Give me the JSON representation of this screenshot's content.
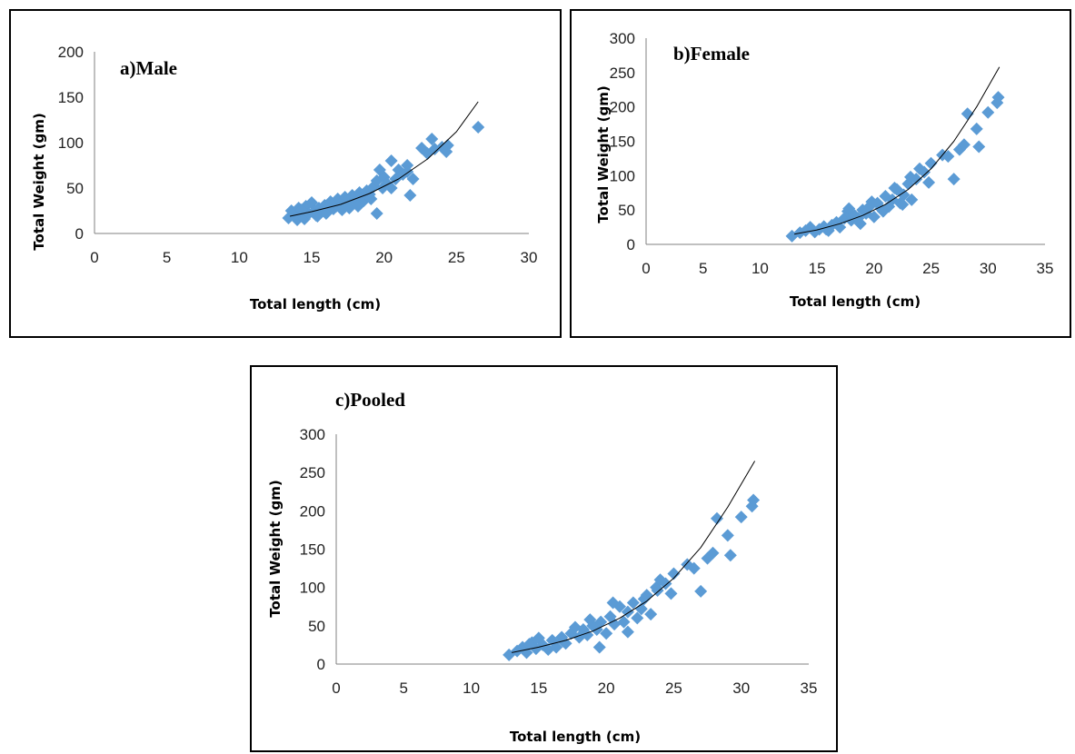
{
  "chart_data": [
    {
      "id": "a",
      "type": "scatter",
      "title": "a)Male",
      "xlabel": "Total length (cm)",
      "ylabel": "Total Weight (gm)",
      "xlim": [
        0,
        30
      ],
      "ylim": [
        0,
        200
      ],
      "xticks": [
        0,
        5,
        10,
        15,
        20,
        25,
        30
      ],
      "yticks": [
        0,
        50,
        100,
        150,
        200
      ],
      "grid": false,
      "marker_color": "#5b9bd5",
      "trend": {
        "type": "power",
        "from_x": 13.5,
        "to_x": 26.5,
        "x": [
          13.5,
          15,
          17,
          19,
          21,
          23,
          25,
          26.5
        ],
        "y": [
          19,
          24,
          32,
          44,
          60,
          82,
          112,
          145
        ]
      },
      "series": [
        {
          "x": [
            13.4,
            13.6,
            13.8,
            14.0,
            14.1,
            14.3,
            14.5,
            14.6,
            14.8,
            15.0,
            15.2,
            15.4,
            15.5,
            15.7,
            15.9,
            16.0,
            16.2,
            16.3,
            16.5,
            16.7,
            16.8,
            17.0,
            17.1,
            17.3,
            17.4,
            17.6,
            17.8,
            17.9,
            18.1,
            18.3,
            18.4,
            18.6,
            18.8,
            19.0,
            19.1,
            19.3,
            19.5,
            19.7,
            19.9,
            20.0,
            20.2,
            20.5,
            20.8,
            21.0,
            21.3,
            21.6,
            21.8,
            22.0,
            22.6,
            23.0,
            23.3,
            23.5,
            24.0,
            24.3,
            24.4,
            26.5,
            19.5,
            20.5,
            21.6,
            18.2,
            16.3,
            15.3,
            14.3
          ],
          "y": [
            17,
            25,
            22,
            15,
            28,
            20,
            16,
            30,
            22,
            34,
            25,
            19,
            28,
            24,
            31,
            22,
            29,
            35,
            27,
            30,
            38,
            33,
            26,
            40,
            35,
            28,
            42,
            37,
            33,
            45,
            39,
            36,
            47,
            43,
            38,
            52,
            58,
            70,
            50,
            62,
            55,
            80,
            60,
            70,
            65,
            75,
            42,
            60,
            94,
            88,
            104,
            93,
            95,
            90,
            97,
            117,
            22,
            50,
            68,
            30,
            33,
            20,
            26
          ]
        }
      ]
    },
    {
      "id": "b",
      "type": "scatter",
      "title": "b)Female",
      "xlabel": "Total length (cm)",
      "ylabel": "Total Weight (gm)",
      "xlim": [
        0,
        35
      ],
      "ylim": [
        0,
        300
      ],
      "xticks": [
        0,
        5,
        10,
        15,
        20,
        25,
        30,
        35
      ],
      "yticks": [
        0,
        50,
        100,
        150,
        200,
        250,
        300
      ],
      "grid": false,
      "marker_color": "#5b9bd5",
      "trend": {
        "type": "power",
        "from_x": 13,
        "to_x": 31,
        "x": [
          13,
          15,
          17,
          19,
          21,
          23,
          25,
          27,
          29,
          31
        ],
        "y": [
          15,
          21,
          30,
          42,
          58,
          80,
          110,
          150,
          200,
          258
        ]
      },
      "series": [
        {
          "x": [
            12.8,
            13.5,
            14.0,
            14.4,
            14.8,
            15.2,
            15.6,
            16.0,
            16.3,
            16.7,
            17.0,
            17.4,
            17.7,
            18.0,
            18.3,
            18.6,
            19.0,
            19.3,
            19.6,
            20.0,
            20.3,
            20.6,
            21.0,
            21.3,
            21.6,
            22.0,
            22.3,
            22.6,
            23.0,
            23.3,
            23.7,
            24.0,
            24.4,
            24.8,
            25.0,
            26.0,
            26.5,
            27.0,
            27.5,
            27.9,
            28.2,
            29.0,
            29.2,
            30.0,
            30.8,
            30.9,
            17.8,
            19.8,
            21.8,
            23.2,
            15.8,
            18.8,
            20.8,
            22.5
          ],
          "y": [
            12,
            17,
            20,
            25,
            18,
            22,
            26,
            20,
            28,
            32,
            25,
            38,
            48,
            35,
            42,
            38,
            50,
            45,
            55,
            40,
            60,
            52,
            70,
            55,
            65,
            80,
            60,
            72,
            88,
            65,
            95,
            110,
            105,
            90,
            118,
            130,
            128,
            95,
            138,
            145,
            190,
            168,
            142,
            192,
            206,
            214,
            52,
            62,
            82,
            98,
            22,
            30,
            48,
            58
          ]
        }
      ]
    },
    {
      "id": "c",
      "type": "scatter",
      "title": "c)Pooled",
      "xlabel": "Total length (cm)",
      "ylabel": "Total Weight (gm)",
      "xlim": [
        0,
        35
      ],
      "ylim": [
        0,
        300
      ],
      "xticks": [
        0,
        5,
        10,
        15,
        20,
        25,
        30,
        35
      ],
      "yticks": [
        0,
        50,
        100,
        150,
        200,
        250,
        300
      ],
      "grid": false,
      "marker_color": "#5b9bd5",
      "trend": {
        "type": "power",
        "from_x": 13,
        "to_x": 31,
        "x": [
          13,
          15,
          17,
          19,
          21,
          23,
          25,
          27,
          29,
          31
        ],
        "y": [
          15,
          22,
          31,
          43,
          60,
          82,
          112,
          152,
          205,
          265
        ]
      },
      "series": [
        {
          "x": [
            12.8,
            13.4,
            13.8,
            14.1,
            14.5,
            14.8,
            15.0,
            15.3,
            15.7,
            16.0,
            16.3,
            16.7,
            17.0,
            17.4,
            17.7,
            18.0,
            18.3,
            18.6,
            19.0,
            19.3,
            19.6,
            20.0,
            20.3,
            20.6,
            21.0,
            21.3,
            21.6,
            22.0,
            22.3,
            22.6,
            23.0,
            23.3,
            23.7,
            24.0,
            24.4,
            24.8,
            25.0,
            26.0,
            26.5,
            27.0,
            27.5,
            27.9,
            28.2,
            29.0,
            29.2,
            30.0,
            30.8,
            30.9,
            19.5,
            20.5,
            21.6,
            14.3,
            16.8,
            18.8,
            22.8,
            23.8
          ],
          "y": [
            12,
            17,
            22,
            15,
            28,
            20,
            34,
            25,
            19,
            31,
            22,
            35,
            27,
            40,
            48,
            35,
            45,
            38,
            50,
            45,
            55,
            40,
            62,
            52,
            75,
            55,
            68,
            80,
            60,
            72,
            90,
            65,
            100,
            110,
            105,
            92,
            118,
            130,
            125,
            95,
            138,
            145,
            190,
            168,
            142,
            192,
            206,
            214,
            22,
            80,
            42,
            26,
            30,
            58,
            85,
            96
          ]
        }
      ]
    }
  ]
}
